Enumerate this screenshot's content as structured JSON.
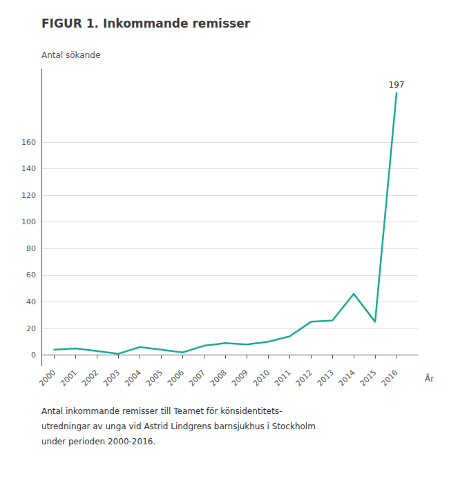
{
  "chart_data": {
    "type": "line",
    "title": "FIGUR 1. Inkommande remisser",
    "ylabel": "Antal sökande",
    "xlabel": "År",
    "x": [
      2000,
      2001,
      2002,
      2003,
      2004,
      2005,
      2006,
      2007,
      2008,
      2009,
      2010,
      2011,
      2012,
      2013,
      2014,
      2015,
      2016
    ],
    "values": [
      4,
      5,
      3,
      1,
      6,
      4,
      2,
      7,
      9,
      8,
      10,
      14,
      25,
      26,
      46,
      25,
      197
    ],
    "color": "#1aaa96",
    "xlim": [
      1999.4,
      2017.0
    ],
    "xticks": [
      2000,
      2001,
      2002,
      2003,
      2004,
      2005,
      2006,
      2007,
      2008,
      2009,
      2010,
      2011,
      2012,
      2013,
      2014,
      2015,
      2016
    ],
    "ylim": [
      -8,
      215
    ],
    "yticks": [
      0,
      20,
      40,
      60,
      80,
      100,
      120,
      140,
      160
    ],
    "grid": true,
    "annotations": [
      {
        "text": "197",
        "x": 2016,
        "y": 197
      }
    ],
    "caption": [
      "Antal inkommande remisser till Teamet för könsidentitets-",
      "utredningar av unga vid Astrid Lindgrens barnsjukhus i Stockholm",
      "under perioden 2000-2016."
    ]
  }
}
